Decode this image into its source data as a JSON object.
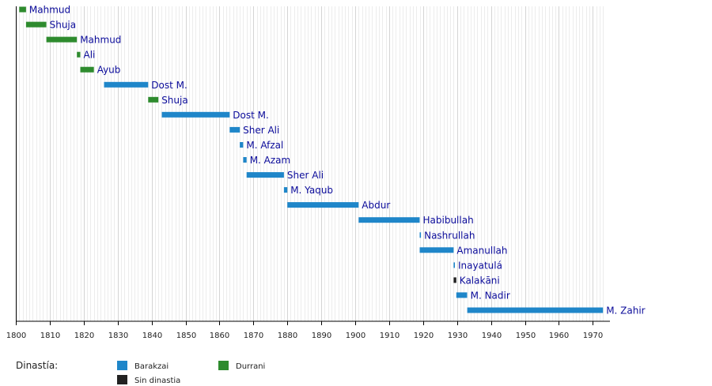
{
  "chart_data": {
    "type": "timeline",
    "title": "",
    "xlim": [
      1800,
      1975
    ],
    "tick_step": 10,
    "ticks": [
      "1800",
      "1810",
      "1820",
      "1830",
      "1840",
      "1850",
      "1860",
      "1870",
      "1880",
      "1890",
      "1900",
      "1910",
      "1920",
      "1930",
      "1940",
      "1950",
      "1960",
      "1970"
    ],
    "colors": {
      "Barakzai": "#1f86c9",
      "Durrani": "#2e8b2e",
      "Sin dinastia": "#222222"
    },
    "rulers": [
      {
        "name": "Mahmud",
        "start": 1801,
        "end": 1803,
        "dynasty": "Durrani"
      },
      {
        "name": "Shuja",
        "start": 1803,
        "end": 1809,
        "dynasty": "Durrani"
      },
      {
        "name": "Mahmud",
        "start": 1809,
        "end": 1818,
        "dynasty": "Durrani"
      },
      {
        "name": "Ali",
        "start": 1818,
        "end": 1819,
        "dynasty": "Durrani"
      },
      {
        "name": "Ayub",
        "start": 1819,
        "end": 1823,
        "dynasty": "Durrani"
      },
      {
        "name": "Dost M.",
        "start": 1826,
        "end": 1839,
        "dynasty": "Barakzai"
      },
      {
        "name": "Shuja",
        "start": 1839,
        "end": 1842,
        "dynasty": "Durrani"
      },
      {
        "name": "Dost M.",
        "start": 1843,
        "end": 1863,
        "dynasty": "Barakzai"
      },
      {
        "name": "Sher Ali",
        "start": 1863,
        "end": 1866,
        "dynasty": "Barakzai"
      },
      {
        "name": "M. Afzal",
        "start": 1866,
        "end": 1867,
        "dynasty": "Barakzai"
      },
      {
        "name": "M. Azam",
        "start": 1867,
        "end": 1868,
        "dynasty": "Barakzai"
      },
      {
        "name": "Sher Ali",
        "start": 1868,
        "end": 1879,
        "dynasty": "Barakzai"
      },
      {
        "name": "M. Yaqub",
        "start": 1879,
        "end": 1880,
        "dynasty": "Barakzai"
      },
      {
        "name": "Abdur",
        "start": 1880,
        "end": 1901,
        "dynasty": "Barakzai"
      },
      {
        "name": "Habibullah",
        "start": 1901,
        "end": 1919,
        "dynasty": "Barakzai"
      },
      {
        "name": "Nashrullah",
        "start": 1919,
        "end": 1919.3,
        "dynasty": "Barakzai"
      },
      {
        "name": "Amanullah",
        "start": 1919,
        "end": 1929,
        "dynasty": "Barakzai"
      },
      {
        "name": "Inayatulá",
        "start": 1929,
        "end": 1929.3,
        "dynasty": "Barakzai"
      },
      {
        "name": "Kalakāni",
        "start": 1929,
        "end": 1929.8,
        "dynasty": "Sin dinastia"
      },
      {
        "name": "M. Nadir",
        "start": 1929.8,
        "end": 1933,
        "dynasty": "Barakzai"
      },
      {
        "name": "M. Zahir",
        "start": 1933,
        "end": 1973,
        "dynasty": "Barakzai"
      }
    ],
    "legend": {
      "title": "Dinastía:",
      "entries": [
        {
          "label": "Barakzai",
          "dynasty": "Barakzai"
        },
        {
          "label": "Sin dinastia",
          "dynasty": "Sin dinastia"
        },
        {
          "label": "Durrani",
          "dynasty": "Durrani"
        }
      ]
    }
  }
}
